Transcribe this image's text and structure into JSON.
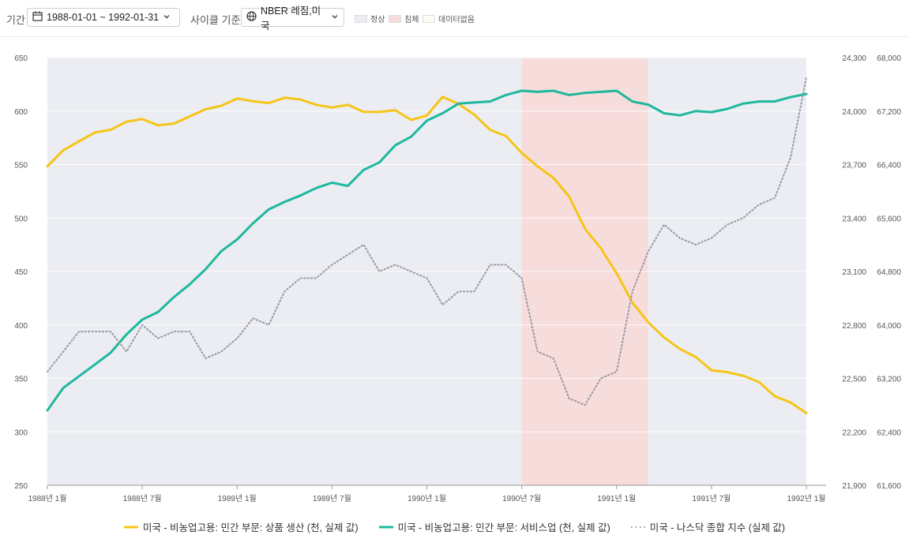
{
  "toolbar": {
    "period_label": "기간",
    "period_value": "1988-01-01 ~ 1992-01-31",
    "cycle_label": "사이클 기준",
    "cycle_value": "NBER 레짐,미국",
    "legend": [
      {
        "label": "정상",
        "color": "#ebedf2"
      },
      {
        "label": "침체",
        "color": "#f7dcdc"
      },
      {
        "label": "데이터없음",
        "color": "#fdfbf2"
      }
    ]
  },
  "chart_data": {
    "type": "line",
    "x_ticks": [
      "1988년 1월",
      "1988년 7월",
      "1989년 1월",
      "1989년 7월",
      "1990년 1월",
      "1990년 7월",
      "1991년 1월",
      "1991년 7월",
      "1992년 1월"
    ],
    "axes": {
      "left": {
        "min": 250,
        "max": 650,
        "ticks": [
          "650",
          "600",
          "550",
          "500",
          "450",
          "400",
          "350",
          "300",
          "250"
        ]
      },
      "right1": {
        "min": 21900,
        "max": 24300,
        "ticks": [
          "24,300",
          "24,000",
          "23,700",
          "23,400",
          "23,100",
          "22,800",
          "22,500",
          "22,200",
          "21,900"
        ]
      },
      "right2": {
        "min": 61600,
        "max": 68000,
        "ticks": [
          "68,000",
          "67,200",
          "66,400",
          "65,600",
          "64,800",
          "64,000",
          "63,200",
          "62,400",
          "61,600"
        ]
      }
    },
    "regimes": [
      {
        "label": "정상",
        "start": "1988-01",
        "end": "1990-07"
      },
      {
        "label": "침체",
        "start": "1990-07",
        "end": "1991-03"
      },
      {
        "label": "정상",
        "start": "1991-03",
        "end": "1992-01"
      }
    ],
    "series": [
      {
        "name": "미국 - 비농업고용: 민간 부문: 상품 생산 (천, 실제 값)",
        "axis": "right1",
        "color": "#f5c518",
        "style": "solid",
        "x": [
          "1988-01",
          "1988-02",
          "1988-03",
          "1988-04",
          "1988-05",
          "1988-06",
          "1988-07",
          "1988-08",
          "1988-09",
          "1988-10",
          "1988-11",
          "1988-12",
          "1989-01",
          "1989-02",
          "1989-03",
          "1989-04",
          "1989-05",
          "1989-06",
          "1989-07",
          "1989-08",
          "1989-09",
          "1989-10",
          "1989-11",
          "1989-12",
          "1990-01",
          "1990-02",
          "1990-03",
          "1990-04",
          "1990-05",
          "1990-06",
          "1990-07",
          "1990-08",
          "1990-09",
          "1990-10",
          "1990-11",
          "1990-12",
          "1991-01",
          "1991-02",
          "1991-03",
          "1991-04",
          "1991-05",
          "1991-06",
          "1991-07",
          "1991-08",
          "1991-09",
          "1991-10",
          "1991-11",
          "1991-12",
          "1992-01"
        ],
        "values": [
          23690,
          23780,
          23830,
          23880,
          23895,
          23940,
          23955,
          23920,
          23930,
          23970,
          24010,
          24030,
          24070,
          24055,
          24045,
          24075,
          24065,
          24035,
          24020,
          24035,
          23996,
          23995,
          24005,
          23950,
          23975,
          24080,
          24040,
          23980,
          23895,
          23860,
          23765,
          23690,
          23625,
          23520,
          23340,
          23230,
          23090,
          22925,
          22815,
          22730,
          22665,
          22620,
          22545,
          22535,
          22515,
          22480,
          22400,
          22365,
          22305
        ]
      },
      {
        "name": "미국 - 비농업고용: 민간 부문: 서비스업 (천, 실제 값)",
        "axis": "left",
        "color": "#1fb89e",
        "style": "solid",
        "x": [
          "1988-01",
          "1988-02",
          "1988-03",
          "1988-04",
          "1988-05",
          "1988-06",
          "1988-07",
          "1988-08",
          "1988-09",
          "1988-10",
          "1988-11",
          "1988-12",
          "1989-01",
          "1989-02",
          "1989-03",
          "1989-04",
          "1989-05",
          "1989-06",
          "1989-07",
          "1989-08",
          "1989-09",
          "1989-10",
          "1989-11",
          "1989-12",
          "1990-01",
          "1990-02",
          "1990-03",
          "1990-04",
          "1990-05",
          "1990-06",
          "1990-07",
          "1990-08",
          "1990-09",
          "1990-10",
          "1990-11",
          "1990-12",
          "1991-01",
          "1991-02",
          "1991-03",
          "1991-04",
          "1991-05",
          "1991-06",
          "1991-07",
          "1991-08",
          "1991-09",
          "1991-10",
          "1991-11",
          "1991-12",
          "1992-01"
        ],
        "values": [
          320,
          341,
          352,
          363,
          374,
          391,
          405,
          412,
          426,
          438,
          452,
          469,
          480,
          495,
          508,
          515,
          521,
          528,
          533,
          530,
          545,
          552,
          568,
          576,
          591,
          598,
          607,
          608,
          609,
          615,
          619,
          618,
          619,
          615,
          617,
          618,
          619,
          609,
          606,
          598,
          596,
          600,
          599,
          602,
          607,
          609,
          609,
          613,
          616
        ]
      },
      {
        "name": "미국 - 나스닥 종합 지수 (실제 값)",
        "axis": "right2",
        "color": "#9a9aa4",
        "style": "dotted",
        "x": [
          "1988-01",
          "1988-03",
          "1988-05",
          "1988-06",
          "1988-07",
          "1988-08",
          "1988-09",
          "1988-10",
          "1988-11",
          "1988-12",
          "1989-01",
          "1989-02",
          "1989-03",
          "1989-04",
          "1989-05",
          "1989-06",
          "1989-07",
          "1989-08",
          "1989-09",
          "1989-10",
          "1989-11",
          "1989-12",
          "1990-01",
          "1990-02",
          "1990-03",
          "1990-04",
          "1990-05",
          "1990-06",
          "1990-07",
          "1990-08",
          "1990-09",
          "1990-10",
          "1990-11",
          "1990-12",
          "1991-01",
          "1991-02",
          "1991-03",
          "1991-04",
          "1991-05",
          "1991-06",
          "1991-07",
          "1991-08",
          "1991-09",
          "1991-10",
          "1991-11",
          "1991-12",
          "1992-01"
        ],
        "values": [
          63300,
          63900,
          63900,
          63600,
          64000,
          63800,
          63900,
          63900,
          63500,
          63600,
          63800,
          64100,
          64000,
          64500,
          64700,
          64700,
          64900,
          65050,
          65200,
          64800,
          64900,
          64800,
          64700,
          64300,
          64500,
          64500,
          64900,
          64900,
          64700,
          63600,
          63500,
          62900,
          62800,
          63200,
          63300,
          64500,
          65100,
          65500,
          65300,
          65200,
          65300,
          65500,
          65600,
          65800,
          65900,
          66500,
          67700
        ]
      }
    ]
  }
}
